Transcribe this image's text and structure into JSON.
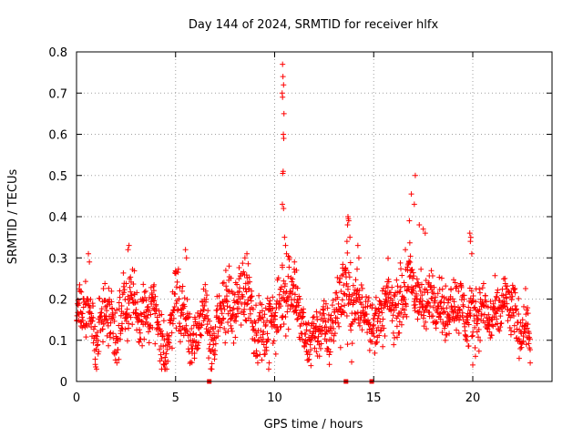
{
  "chart_data": {
    "type": "scatter",
    "title": "Day 144 of 2024, SRMTID for receiver hlfx",
    "xlabel": "GPS time / hours",
    "ylabel": "SRMTID / TECUs",
    "xlim": [
      0,
      24
    ],
    "ylim": [
      0,
      0.8
    ],
    "x_ticks": [
      0,
      5,
      10,
      15,
      20
    ],
    "x_tick_labels": [
      "0",
      "5",
      "10",
      "15",
      "20"
    ],
    "y_ticks": [
      0,
      0.1,
      0.2,
      0.3,
      0.4,
      0.5,
      0.6,
      0.7,
      0.8
    ],
    "y_tick_labels": [
      "0",
      "0.1",
      "0.2",
      "0.3",
      "0.4",
      "0.5",
      "0.6",
      "0.7",
      "0.8"
    ],
    "grid": true,
    "marker": "plus",
    "color": "#ff0000",
    "baseline_value_hours": [
      6.7,
      13.6,
      14.9
    ],
    "profile": {
      "hours": [
        0.0,
        0.5,
        1.0,
        1.5,
        2.0,
        2.5,
        3.0,
        3.5,
        4.0,
        4.5,
        5.0,
        5.5,
        6.0,
        6.5,
        7.0,
        7.5,
        8.0,
        8.5,
        9.0,
        9.5,
        10.0,
        10.5,
        11.0,
        11.5,
        12.0,
        12.5,
        13.0,
        13.5,
        14.0,
        14.5,
        15.0,
        15.5,
        16.0,
        16.5,
        17.0,
        17.5,
        18.0,
        18.5,
        19.0,
        19.5,
        20.0,
        20.5,
        21.0,
        21.5,
        22.0,
        22.5,
        22.9
      ],
      "mean": [
        0.14,
        0.17,
        0.12,
        0.16,
        0.14,
        0.2,
        0.16,
        0.17,
        0.14,
        0.08,
        0.2,
        0.16,
        0.1,
        0.16,
        0.1,
        0.18,
        0.2,
        0.22,
        0.15,
        0.12,
        0.14,
        0.24,
        0.2,
        0.12,
        0.1,
        0.13,
        0.15,
        0.22,
        0.2,
        0.16,
        0.15,
        0.17,
        0.18,
        0.22,
        0.22,
        0.2,
        0.19,
        0.18,
        0.19,
        0.16,
        0.17,
        0.15,
        0.17,
        0.17,
        0.18,
        0.14,
        0.1
      ],
      "spread": [
        0.04,
        0.07,
        0.05,
        0.05,
        0.06,
        0.08,
        0.05,
        0.05,
        0.05,
        0.05,
        0.06,
        0.06,
        0.05,
        0.06,
        0.05,
        0.06,
        0.06,
        0.07,
        0.05,
        0.05,
        0.05,
        0.08,
        0.06,
        0.05,
        0.05,
        0.05,
        0.06,
        0.08,
        0.07,
        0.05,
        0.05,
        0.05,
        0.05,
        0.07,
        0.06,
        0.05,
        0.05,
        0.05,
        0.05,
        0.05,
        0.06,
        0.05,
        0.05,
        0.05,
        0.05,
        0.05,
        0.04
      ]
    },
    "peaks": [
      {
        "x": 10.4,
        "y": 0.77
      },
      {
        "x": 10.42,
        "y": 0.74
      },
      {
        "x": 10.45,
        "y": 0.72
      },
      {
        "x": 10.38,
        "y": 0.7
      },
      {
        "x": 10.4,
        "y": 0.69
      },
      {
        "x": 10.47,
        "y": 0.65
      },
      {
        "x": 10.44,
        "y": 0.6
      },
      {
        "x": 10.46,
        "y": 0.59
      },
      {
        "x": 10.43,
        "y": 0.51
      },
      {
        "x": 10.41,
        "y": 0.505
      },
      {
        "x": 10.39,
        "y": 0.43
      },
      {
        "x": 10.45,
        "y": 0.42
      },
      {
        "x": 10.5,
        "y": 0.35
      },
      {
        "x": 10.55,
        "y": 0.33
      },
      {
        "x": 10.6,
        "y": 0.31
      },
      {
        "x": 13.7,
        "y": 0.4
      },
      {
        "x": 13.72,
        "y": 0.395
      },
      {
        "x": 13.74,
        "y": 0.39
      },
      {
        "x": 13.68,
        "y": 0.38
      },
      {
        "x": 13.8,
        "y": 0.35
      },
      {
        "x": 13.65,
        "y": 0.34
      },
      {
        "x": 14.2,
        "y": 0.33
      },
      {
        "x": 14.25,
        "y": 0.3
      },
      {
        "x": 17.1,
        "y": 0.5
      },
      {
        "x": 16.9,
        "y": 0.455
      },
      {
        "x": 17.05,
        "y": 0.43
      },
      {
        "x": 16.8,
        "y": 0.39
      },
      {
        "x": 17.3,
        "y": 0.38
      },
      {
        "x": 17.5,
        "y": 0.37
      },
      {
        "x": 16.6,
        "y": 0.32
      },
      {
        "x": 17.6,
        "y": 0.36
      },
      {
        "x": 19.85,
        "y": 0.36
      },
      {
        "x": 19.9,
        "y": 0.35
      },
      {
        "x": 19.88,
        "y": 0.34
      },
      {
        "x": 19.95,
        "y": 0.31
      },
      {
        "x": 20.0,
        "y": 0.04
      },
      {
        "x": 22.9,
        "y": 0.045
      },
      {
        "x": 9.7,
        "y": 0.03
      },
      {
        "x": 9.72,
        "y": 0.045
      },
      {
        "x": 4.3,
        "y": 0.03
      },
      {
        "x": 4.4,
        "y": 0.04
      },
      {
        "x": 2.65,
        "y": 0.33
      },
      {
        "x": 2.6,
        "y": 0.32
      },
      {
        "x": 0.6,
        "y": 0.31
      },
      {
        "x": 0.65,
        "y": 0.29
      },
      {
        "x": 5.5,
        "y": 0.32
      },
      {
        "x": 5.55,
        "y": 0.3
      },
      {
        "x": 8.6,
        "y": 0.31
      },
      {
        "x": 8.5,
        "y": 0.3
      },
      {
        "x": 11.0,
        "y": 0.29
      },
      {
        "x": 11.1,
        "y": 0.27
      }
    ]
  }
}
